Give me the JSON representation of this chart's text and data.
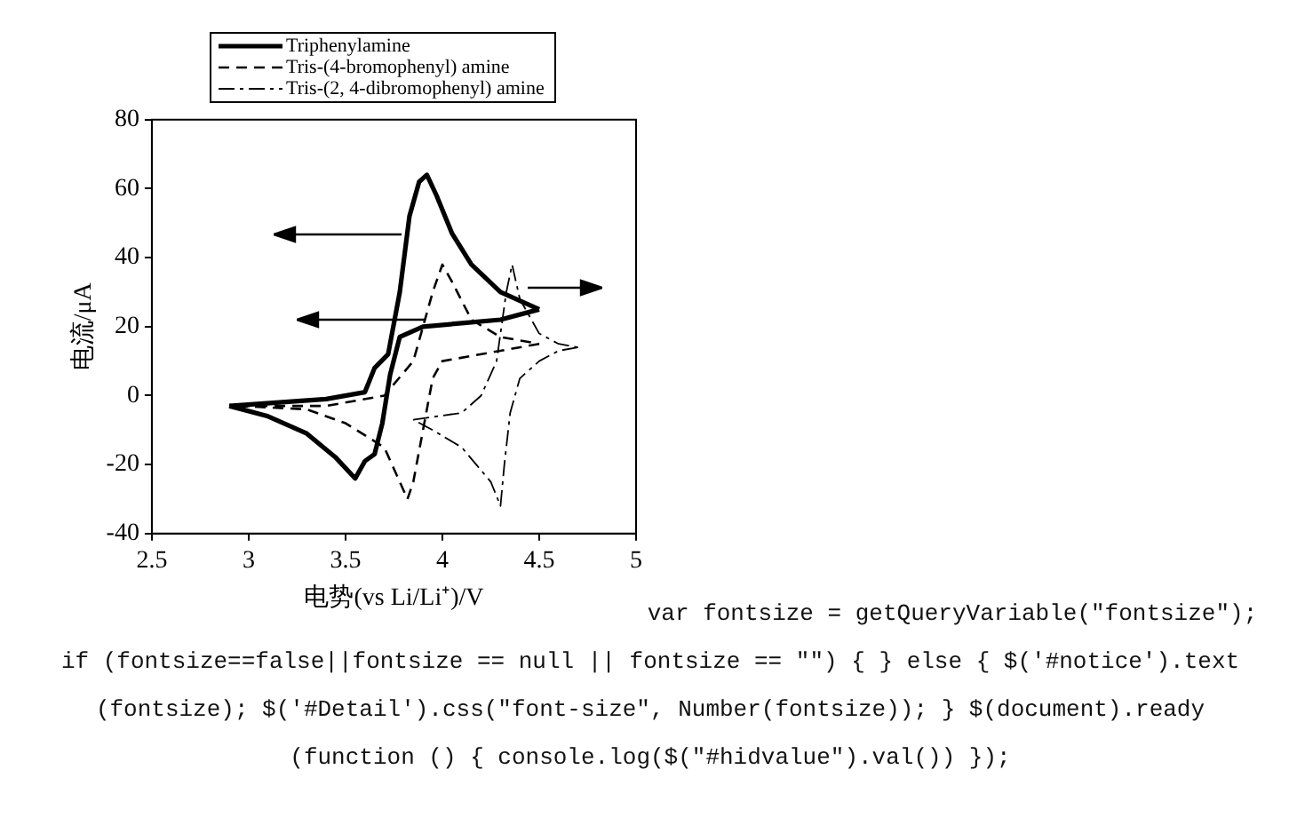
{
  "chart_data": {
    "type": "line",
    "xlabel": "电势(vs Li/Li⁺)/V",
    "ylabel": "电流/μA",
    "xlim": [
      2.5,
      5
    ],
    "xticks": [
      2.5,
      3,
      3.5,
      4,
      4.5,
      5
    ],
    "ylim": [
      -40,
      80
    ],
    "yticks": [
      -40,
      -20,
      0,
      20,
      40,
      60,
      80
    ],
    "grid": false,
    "legend": "top",
    "marker": "none",
    "series": [
      {
        "name": "Triphenylamine",
        "color": "#000000",
        "line_style": "solid",
        "x": [
          2.9,
          3.4,
          3.6,
          3.65,
          3.72,
          3.78,
          3.83,
          3.88,
          3.92,
          3.97,
          4.05,
          4.15,
          4.3,
          4.5
        ],
        "values": [
          -3,
          -1,
          1,
          8,
          12,
          30,
          52,
          62,
          64,
          58,
          47,
          38,
          30,
          25
        ]
      },
      {
        "color": "#000000",
        "line_style": "solid",
        "x": [
          4.5,
          4.3,
          4.1,
          3.9,
          3.78,
          3.73,
          3.69,
          3.65,
          3.6,
          3.55,
          3.45,
          3.3,
          3.1,
          2.9
        ],
        "values": [
          25,
          22,
          21,
          20,
          17,
          6,
          -8,
          -17,
          -19,
          -24,
          -18,
          -11,
          -6,
          -3
        ]
      },
      {
        "name": "Tris-(4-bromophenyl) amine",
        "color": "#000000",
        "line_style": "dashed",
        "x": [
          2.95,
          3.4,
          3.7,
          3.85,
          3.95,
          4.0,
          4.05,
          4.15,
          4.3,
          4.5
        ],
        "values": [
          -3,
          -3,
          0,
          10,
          30,
          38,
          33,
          22,
          17,
          15
        ]
      },
      {
        "color": "#000000",
        "line_style": "dashed",
        "x": [
          4.5,
          4.3,
          4.0,
          3.95,
          3.9,
          3.85,
          3.82,
          3.78,
          3.7,
          3.5,
          3.3,
          2.95
        ],
        "values": [
          15,
          13,
          10,
          5,
          -10,
          -25,
          -30,
          -25,
          -15,
          -8,
          -4,
          -3
        ]
      },
      {
        "name": "Tris-(2, 4-dibromophenyl) amine",
        "color": "#000000",
        "line_style": "dashdot",
        "x": [
          3.85,
          4.1,
          4.2,
          4.28,
          4.33,
          4.36,
          4.4,
          4.5,
          4.6,
          4.7
        ],
        "values": [
          -7,
          -5,
          0,
          10,
          30,
          38,
          28,
          18,
          15,
          14
        ]
      },
      {
        "color": "#000000",
        "line_style": "dashdot",
        "x": [
          4.7,
          4.6,
          4.5,
          4.4,
          4.35,
          4.32,
          4.3,
          4.25,
          4.1,
          3.95,
          3.85
        ],
        "values": [
          14,
          13,
          10,
          5,
          -5,
          -20,
          -32,
          -25,
          -15,
          -10,
          -7
        ]
      }
    ],
    "annotations": [
      "var fontsize = getQueryVariable(\"fontsize\"); if (fontsize==false||fontsize == null || fontsize == \"\") { } else { $('#notice').text (fontsize); $('#Detail').css(\"font-size\", Number(fontsize)); } $(document).ready (function () { console.log($(\"#hidvalue\").val()) });"
    ]
  }
}
